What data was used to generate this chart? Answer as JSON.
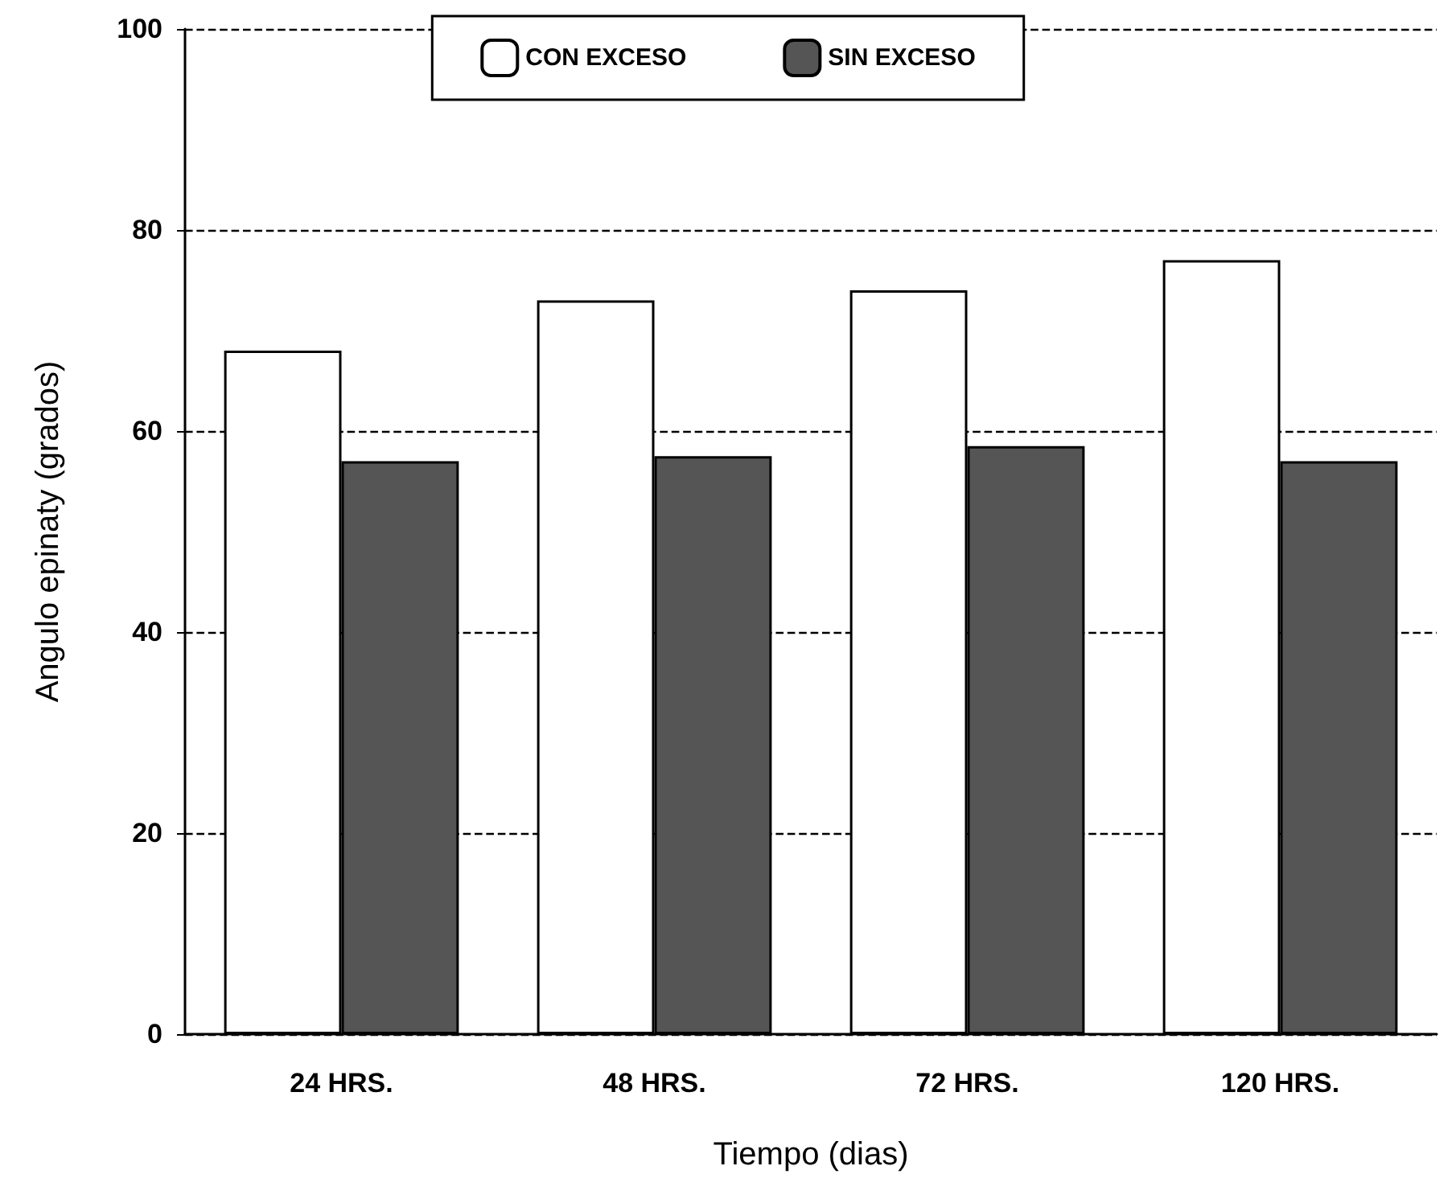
{
  "chart_data": {
    "type": "bar",
    "xlabel": "Tiempo (dias)",
    "ylabel": "Angulo epinaty (grados)",
    "categories": [
      "24 HRS.",
      "48 HRS.",
      "72 HRS.",
      "120 HRS."
    ],
    "series": [
      {
        "name": "CON EXCESO",
        "color": "#ffffff",
        "values": [
          68,
          73,
          74,
          77
        ]
      },
      {
        "name": "SIN EXCESO",
        "color": "#555555",
        "values": [
          57,
          57.5,
          58.5,
          57
        ]
      }
    ],
    "ylim": [
      0,
      100
    ],
    "yticks": [
      0,
      20,
      40,
      60,
      80,
      100
    ],
    "grid": "y",
    "legend": "top",
    "line_style": "dashed"
  }
}
